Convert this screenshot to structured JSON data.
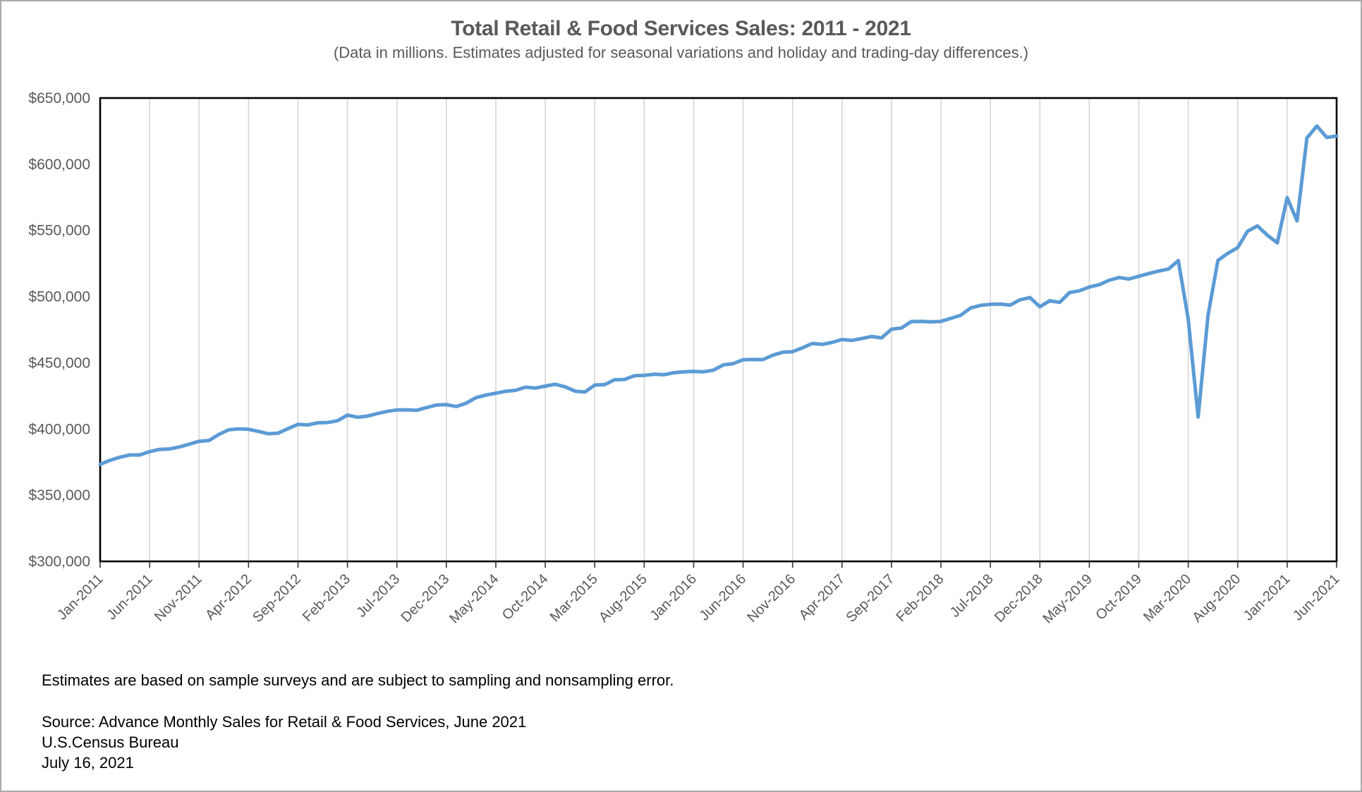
{
  "page": {
    "background": "#ffffff",
    "border_color": "#ababab"
  },
  "chart_data": {
    "type": "line",
    "title": "Total Retail & Food Services Sales: 2011 - 2021",
    "subtitle": "(Data in millions. Estimates adjusted for seasonal variations and holiday and trading-day differences.)",
    "xlabel": "",
    "ylabel": "",
    "ylim": [
      300000,
      650000
    ],
    "y_tick_step": 50000,
    "y_tick_labels": [
      "$650,000",
      "$600,000",
      "$550,000",
      "$500,000",
      "$450,000",
      "$400,000",
      "$350,000",
      "$300,000"
    ],
    "x_tick_interval": 5,
    "x_tick_labels": [
      "Jan-2011",
      "Jun-2011",
      "Nov-2011",
      "Apr-2012",
      "Sep-2012",
      "Feb-2013",
      "Jul-2013",
      "Dec-2013",
      "May-2014",
      "Oct-2014",
      "Mar-2015",
      "Aug-2015",
      "Jan-2016",
      "Jun-2016",
      "Nov-2016",
      "Apr-2017",
      "Sep-2017",
      "Feb-2018",
      "Jul-2018",
      "Dec-2018",
      "May-2019",
      "Oct-2019",
      "Mar-2020",
      "Aug-2020",
      "Jan-2021",
      "Jun-2021"
    ],
    "grid": "vertical-only",
    "gridline_color": "#d6d6d6",
    "frame_color": "#000000",
    "line_color": "#5b9bd5",
    "line_width": 5,
    "legend": "none",
    "x": [
      "Jan-2011",
      "Feb-2011",
      "Mar-2011",
      "Apr-2011",
      "May-2011",
      "Jun-2011",
      "Jul-2011",
      "Aug-2011",
      "Sep-2011",
      "Oct-2011",
      "Nov-2011",
      "Dec-2011",
      "Jan-2012",
      "Feb-2012",
      "Mar-2012",
      "Apr-2012",
      "May-2012",
      "Jun-2012",
      "Jul-2012",
      "Aug-2012",
      "Sep-2012",
      "Oct-2012",
      "Nov-2012",
      "Dec-2012",
      "Jan-2013",
      "Feb-2013",
      "Mar-2013",
      "Apr-2013",
      "May-2013",
      "Jun-2013",
      "Jul-2013",
      "Aug-2013",
      "Sep-2013",
      "Oct-2013",
      "Nov-2013",
      "Dec-2013",
      "Jan-2014",
      "Feb-2014",
      "Mar-2014",
      "Apr-2014",
      "May-2014",
      "Jun-2014",
      "Jul-2014",
      "Aug-2014",
      "Sep-2014",
      "Oct-2014",
      "Nov-2014",
      "Dec-2014",
      "Jan-2015",
      "Feb-2015",
      "Mar-2015",
      "Apr-2015",
      "May-2015",
      "Jun-2015",
      "Jul-2015",
      "Aug-2015",
      "Sep-2015",
      "Oct-2015",
      "Nov-2015",
      "Dec-2015",
      "Jan-2016",
      "Feb-2016",
      "Mar-2016",
      "Apr-2016",
      "May-2016",
      "Jun-2016",
      "Jul-2016",
      "Aug-2016",
      "Sep-2016",
      "Oct-2016",
      "Nov-2016",
      "Dec-2016",
      "Jan-2017",
      "Feb-2017",
      "Mar-2017",
      "Apr-2017",
      "May-2017",
      "Jun-2017",
      "Jul-2017",
      "Aug-2017",
      "Sep-2017",
      "Oct-2017",
      "Nov-2017",
      "Dec-2017",
      "Jan-2018",
      "Feb-2018",
      "Mar-2018",
      "Apr-2018",
      "May-2018",
      "Jun-2018",
      "Jul-2018",
      "Aug-2018",
      "Sep-2018",
      "Oct-2018",
      "Nov-2018",
      "Dec-2018",
      "Jan-2019",
      "Feb-2019",
      "Mar-2019",
      "Apr-2019",
      "May-2019",
      "Jun-2019",
      "Jul-2019",
      "Aug-2019",
      "Sep-2019",
      "Oct-2019",
      "Nov-2019",
      "Dec-2019",
      "Jan-2020",
      "Feb-2020",
      "Mar-2020",
      "Apr-2020",
      "May-2020",
      "Jun-2020",
      "Jul-2020",
      "Aug-2020",
      "Sep-2020",
      "Oct-2020",
      "Nov-2020",
      "Dec-2020",
      "Jan-2021",
      "Feb-2021",
      "Mar-2021",
      "Apr-2021",
      "May-2021",
      "Jun-2021"
    ],
    "values": [
      373300,
      376400,
      378700,
      380400,
      380400,
      382900,
      384600,
      384900,
      386400,
      388500,
      390700,
      391300,
      395900,
      399400,
      400100,
      399700,
      398200,
      396400,
      396900,
      400300,
      403500,
      403100,
      404700,
      404900,
      406200,
      410500,
      408900,
      409700,
      411600,
      413300,
      414400,
      414500,
      414100,
      416200,
      418100,
      418400,
      417000,
      419500,
      423700,
      425600,
      427000,
      428500,
      429200,
      431600,
      430900,
      432400,
      433800,
      431900,
      428600,
      427900,
      433200,
      433500,
      437200,
      437400,
      440200,
      440500,
      441400,
      441000,
      442500,
      443200,
      443500,
      443200,
      444500,
      448400,
      449400,
      452300,
      452500,
      452400,
      455700,
      458000,
      458400,
      461300,
      464600,
      463900,
      465400,
      467600,
      466900,
      468400,
      469900,
      468800,
      475400,
      476200,
      481100,
      481300,
      480900,
      481300,
      483600,
      485900,
      491400,
      493400,
      494200,
      494400,
      493600,
      497600,
      499300,
      492300,
      496900,
      495600,
      503100,
      504400,
      507300,
      509000,
      512300,
      514400,
      513300,
      515400,
      517400,
      519300,
      520800,
      527200,
      483100,
      409000,
      485800,
      527300,
      532700,
      537000,
      549400,
      553400,
      546400,
      540600,
      574700,
      557200,
      619800,
      628900,
      620200,
      621300
    ]
  },
  "footnotes": {
    "note": "Estimates are based on sample surveys and are subject to sampling and nonsampling error.",
    "source": "Source: Advance Monthly Sales for Retail & Food Services, June 2021",
    "agency": "U.S.Census Bureau",
    "date": "July 16, 2021"
  }
}
